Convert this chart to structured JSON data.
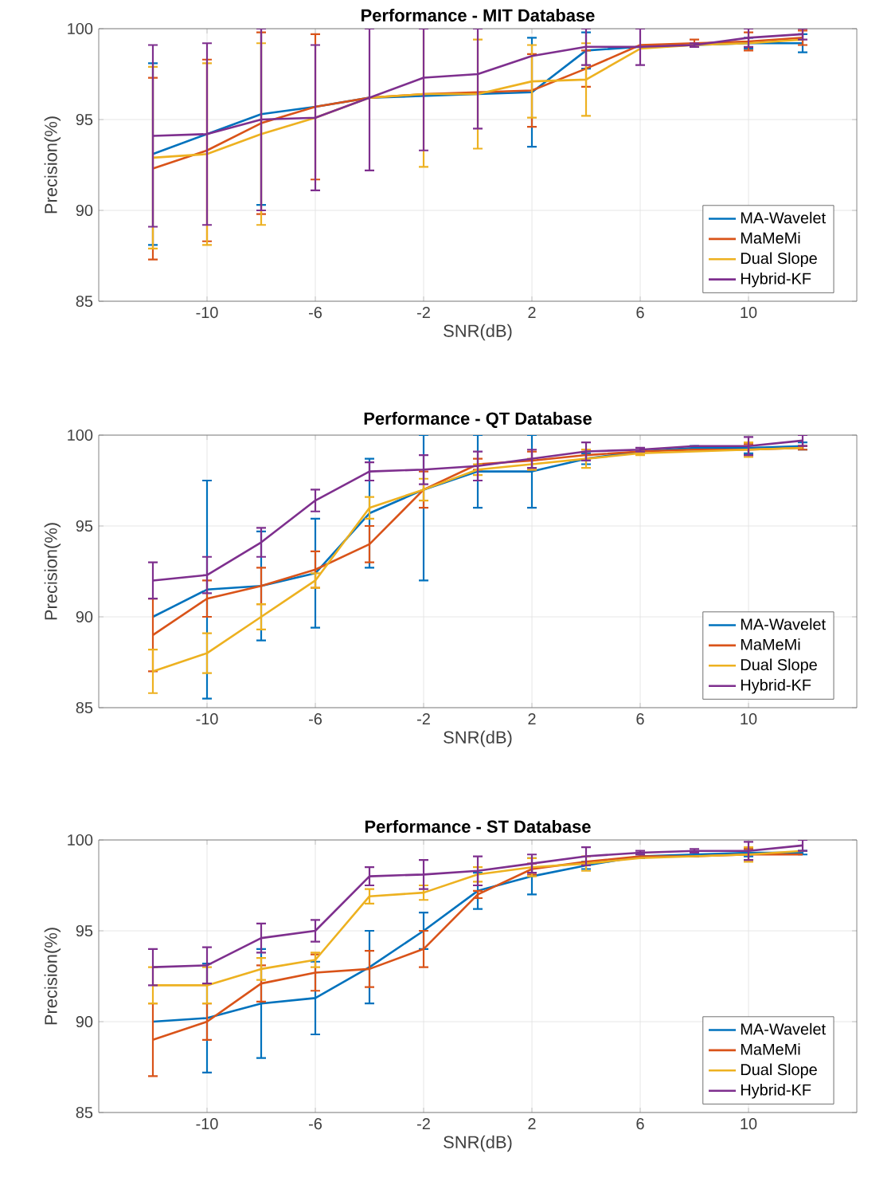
{
  "chart_data": [
    {
      "type": "line",
      "title": "Performance - MIT Database",
      "xlabel": "SNR(dB)",
      "ylabel": "Precision(%)",
      "x": [
        -12,
        -10,
        -8,
        -6,
        -4,
        -2,
        0,
        2,
        4,
        6,
        8,
        10,
        12
      ],
      "xlim": [
        -14,
        14
      ],
      "ylim": [
        85,
        100
      ],
      "xticks": [
        -10,
        -6,
        -2,
        2,
        6,
        10
      ],
      "yticks": [
        85,
        90,
        95,
        100
      ],
      "grid": true,
      "legend": "bottom right",
      "marker": "none",
      "series": [
        {
          "name": "MA-Wavelet",
          "color": "#0072bd",
          "values": [
            93.1,
            94.2,
            95.3,
            95.7,
            96.2,
            96.3,
            96.4,
            96.5,
            98.8,
            99.0,
            99.1,
            99.2,
            99.2
          ],
          "errors": [
            5,
            null,
            [
              90.3,
              100
            ],
            null,
            null,
            null,
            null,
            3,
            1,
            null,
            null,
            0.3,
            0.5
          ]
        },
        {
          "name": "MaMeMi",
          "color": "#d95319",
          "values": [
            92.3,
            93.3,
            94.8,
            95.7,
            96.2,
            96.4,
            96.5,
            96.6,
            97.8,
            99.1,
            99.2,
            99.3,
            99.5
          ],
          "errors": [
            5,
            5,
            5,
            4,
            null,
            null,
            null,
            2,
            1,
            null,
            0.2,
            0.5,
            0.4
          ]
        },
        {
          "name": "Dual Slope",
          "color": "#edb120",
          "values": [
            92.9,
            93.1,
            94.2,
            95.1,
            96.2,
            96.4,
            96.4,
            97.1,
            97.2,
            98.9,
            99.1,
            99.2,
            99.4
          ],
          "errors": [
            5,
            5,
            5,
            null,
            null,
            [
              92.4,
              100
            ],
            3,
            2,
            2,
            null,
            null,
            null,
            null
          ]
        },
        {
          "name": "Hybrid-KF",
          "color": "#7e2f8e",
          "values": [
            94.1,
            94.2,
            95.0,
            95.1,
            96.2,
            97.3,
            97.5,
            98.5,
            99.0,
            99.0,
            99.1,
            99.5,
            99.7
          ],
          "errors": [
            5,
            5,
            [
              90.0,
              100
            ],
            4,
            [
              92.2,
              100
            ],
            [
              93.3,
              100
            ],
            [
              94.5,
              100
            ],
            null,
            [
              98.0,
              100
            ],
            [
              98.0,
              100
            ],
            0.1,
            0.5,
            0.3
          ]
        }
      ]
    },
    {
      "type": "line",
      "title": "Performance - QT Database",
      "xlabel": "SNR(dB)",
      "ylabel": "Precision(%)",
      "x": [
        -12,
        -10,
        -8,
        -6,
        -4,
        -2,
        0,
        2,
        4,
        6,
        8,
        10,
        12
      ],
      "xlim": [
        -14,
        14
      ],
      "ylim": [
        85,
        100
      ],
      "xticks": [
        -10,
        -6,
        -2,
        2,
        6,
        10
      ],
      "yticks": [
        85,
        90,
        95,
        100
      ],
      "grid": true,
      "legend": "bottom right",
      "marker": "none",
      "series": [
        {
          "name": "MA-Wavelet",
          "color": "#0072bd",
          "values": [
            90.0,
            91.5,
            91.7,
            92.4,
            95.7,
            97.0,
            98.0,
            98.0,
            98.7,
            99.1,
            99.3,
            99.3,
            99.4
          ],
          "errors": [
            null,
            6,
            3,
            3,
            3,
            [
              92.0,
              100
            ],
            [
              96.0,
              100
            ],
            2,
            0.3,
            null,
            0.1,
            0.3,
            0.2
          ]
        },
        {
          "name": "MaMeMi",
          "color": "#d95319",
          "values": [
            89.0,
            91.0,
            91.7,
            92.6,
            94.0,
            97.0,
            98.4,
            98.6,
            98.9,
            99.1,
            99.2,
            99.2,
            99.3
          ],
          "errors": [
            2,
            1,
            1,
            1,
            1,
            1,
            0.3,
            0.5,
            0.3,
            null,
            null,
            0.3,
            0.1
          ]
        },
        {
          "name": "Dual Slope",
          "color": "#edb120",
          "values": [
            87.0,
            88.0,
            90.0,
            92.0,
            96.0,
            97.0,
            98.1,
            98.4,
            98.7,
            99.0,
            99.1,
            99.2,
            99.3
          ],
          "errors": [
            1.2,
            1.1,
            0.7,
            0.4,
            0.6,
            0.6,
            0.3,
            0.3,
            0.5,
            0.1,
            null,
            0.4,
            null
          ]
        },
        {
          "name": "Hybrid-KF",
          "color": "#7e2f8e",
          "values": [
            92.0,
            92.3,
            94.1,
            96.4,
            98.0,
            98.1,
            98.3,
            98.7,
            99.1,
            99.2,
            99.4,
            99.4,
            99.7
          ],
          "errors": [
            1,
            1,
            0.8,
            0.6,
            0.5,
            0.8,
            0.8,
            0.5,
            0.5,
            0.1,
            null,
            0.5,
            0.3
          ]
        }
      ]
    },
    {
      "type": "line",
      "title": "Performance - ST Database",
      "xlabel": "SNR(dB)",
      "ylabel": "Precision(%)",
      "x": [
        -12,
        -10,
        -8,
        -6,
        -4,
        -2,
        0,
        2,
        4,
        6,
        8,
        10,
        12
      ],
      "xlim": [
        -14,
        14
      ],
      "ylim": [
        85,
        100
      ],
      "xticks": [
        -10,
        -6,
        -2,
        2,
        6,
        10
      ],
      "yticks": [
        85,
        90,
        95,
        100
      ],
      "grid": true,
      "legend": "bottom right",
      "marker": "none",
      "series": [
        {
          "name": "MA-Wavelet",
          "color": "#0072bd",
          "values": [
            90.0,
            90.2,
            91.0,
            91.3,
            93.0,
            95.0,
            97.2,
            98.0,
            98.6,
            99.1,
            99.2,
            99.3,
            99.3
          ],
          "errors": [
            null,
            3,
            3,
            2,
            2,
            1,
            1,
            1,
            0.2,
            0.1,
            0.1,
            0.2,
            0.1
          ]
        },
        {
          "name": "MaMeMi",
          "color": "#d95319",
          "values": [
            89.0,
            90.0,
            92.1,
            92.7,
            92.9,
            94.0,
            97.0,
            98.4,
            98.8,
            99.1,
            99.1,
            99.2,
            99.2
          ],
          "errors": [
            2,
            1,
            1,
            1,
            1,
            1,
            0.2,
            0.3,
            null,
            null,
            null,
            0.3,
            null
          ]
        },
        {
          "name": "Dual Slope",
          "color": "#edb120",
          "values": [
            92.0,
            92.0,
            92.9,
            93.4,
            96.9,
            97.1,
            98.1,
            98.5,
            98.7,
            99.0,
            99.1,
            99.2,
            99.4
          ],
          "errors": [
            1,
            1,
            0.6,
            0.4,
            0.4,
            0.4,
            0.4,
            0.5,
            0.4,
            null,
            null,
            0.4,
            null
          ]
        },
        {
          "name": "Hybrid-KF",
          "color": "#7e2f8e",
          "values": [
            93.0,
            93.1,
            94.6,
            95.0,
            98.0,
            98.1,
            98.3,
            98.7,
            99.1,
            99.3,
            99.4,
            99.4,
            99.7
          ],
          "errors": [
            1,
            1,
            0.8,
            0.6,
            0.5,
            0.8,
            0.8,
            0.5,
            0.5,
            0.1,
            0.1,
            0.5,
            0.3
          ]
        }
      ]
    }
  ]
}
